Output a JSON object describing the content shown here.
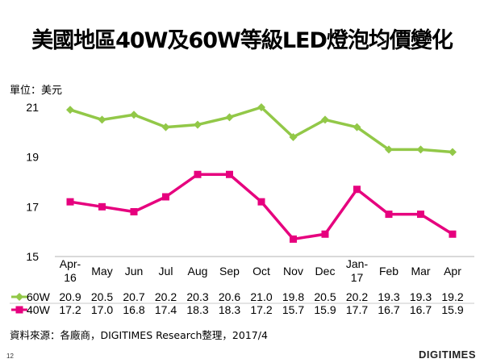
{
  "chart_data": {
    "type": "line",
    "title": "美國地區40W及60W等級LED燈泡均價變化",
    "ylabel": "單位：美元",
    "xlabel": "",
    "ylim": [
      15,
      21
    ],
    "yticks": [
      "15",
      "17",
      "19",
      "21"
    ],
    "categories": [
      "Apr-16",
      "May",
      "Jun",
      "Jul",
      "Aug",
      "Sep",
      "Oct",
      "Nov",
      "Dec",
      "Jan-17",
      "Feb",
      "Mar",
      "Apr"
    ],
    "series": [
      {
        "name": "60W",
        "color": "#92C848",
        "marker": "diamond",
        "values": [
          20.9,
          20.5,
          20.7,
          20.2,
          20.3,
          20.6,
          21.0,
          19.8,
          20.5,
          20.2,
          19.3,
          19.3,
          19.2
        ],
        "labels": [
          "20.9",
          "20.5",
          "20.7",
          "20.2",
          "20.3",
          "20.6",
          "21.0",
          "19.8",
          "20.5",
          "20.2",
          "19.3",
          "19.3",
          "19.2"
        ]
      },
      {
        "name": "40W",
        "color": "#E6007E",
        "marker": "square",
        "values": [
          17.2,
          17.0,
          16.8,
          17.4,
          18.3,
          18.3,
          17.2,
          15.7,
          15.9,
          17.7,
          16.7,
          16.7,
          15.9
        ],
        "labels": [
          "17.2",
          "17.0",
          "16.8",
          "17.4",
          "18.3",
          "18.3",
          "17.2",
          "15.7",
          "15.9",
          "17.7",
          "16.7",
          "16.7",
          "15.9"
        ]
      }
    ],
    "legend": "data-table",
    "grid": false
  },
  "footer": {
    "source": "資料來源：各廠商，DIGITIMES Research整理，2017/4",
    "page_number": "12",
    "logo": "DIGITIMES"
  }
}
